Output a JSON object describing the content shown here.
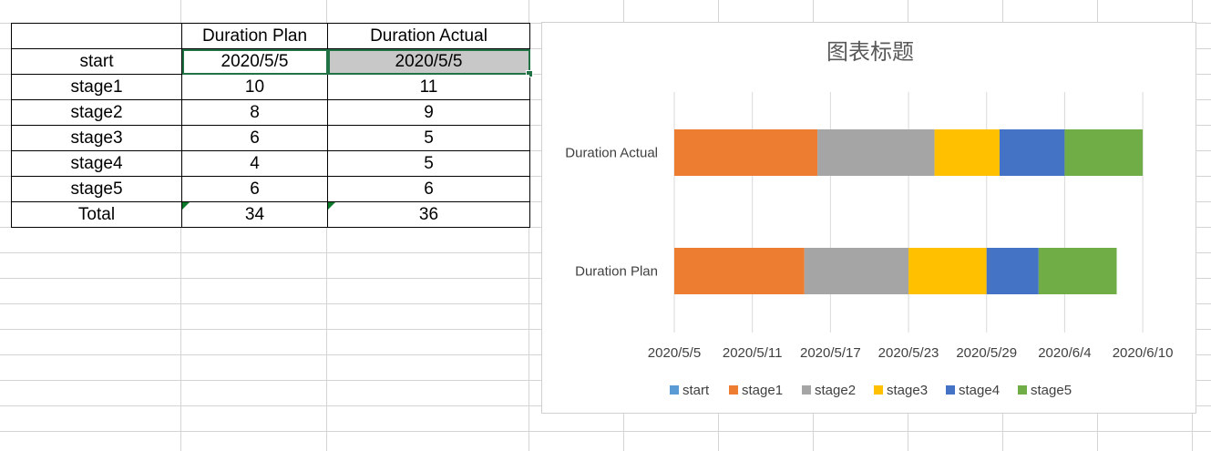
{
  "spreadsheet": {
    "headers": [
      "",
      "Duration Plan",
      "Duration Actual"
    ],
    "rows": [
      [
        "start",
        "2020/5/5",
        "2020/5/5"
      ],
      [
        "stage1",
        "10",
        "11"
      ],
      [
        "stage2",
        "8",
        "9"
      ],
      [
        "stage3",
        "6",
        "5"
      ],
      [
        "stage4",
        "4",
        "5"
      ],
      [
        "stage5",
        "6",
        "6"
      ],
      [
        "Total",
        "34",
        "36"
      ]
    ]
  },
  "chart_data": {
    "type": "bar",
    "orientation": "horizontal",
    "stacked": true,
    "title": "图表标题",
    "categories": [
      "Duration Actual",
      "Duration Plan"
    ],
    "x_start_date": "2020/5/5",
    "x_ticks": [
      "2020/5/5",
      "2020/5/11",
      "2020/5/17",
      "2020/5/23",
      "2020/5/29",
      "2020/6/4",
      "2020/6/10"
    ],
    "x_tick_days": [
      0,
      6,
      12,
      18,
      24,
      30,
      36
    ],
    "series": [
      {
        "name": "start",
        "color": "#5b9bd5",
        "values": [
          0,
          0
        ]
      },
      {
        "name": "stage1",
        "color": "#ed7d31",
        "values": [
          11,
          10
        ]
      },
      {
        "name": "stage2",
        "color": "#a5a5a5",
        "values": [
          9,
          8
        ]
      },
      {
        "name": "stage3",
        "color": "#ffc000",
        "values": [
          5,
          6
        ]
      },
      {
        "name": "stage4",
        "color": "#4472c4",
        "values": [
          5,
          4
        ]
      },
      {
        "name": "stage5",
        "color": "#70ad47",
        "values": [
          6,
          6
        ]
      }
    ],
    "grid": true,
    "legend_position": "bottom"
  }
}
